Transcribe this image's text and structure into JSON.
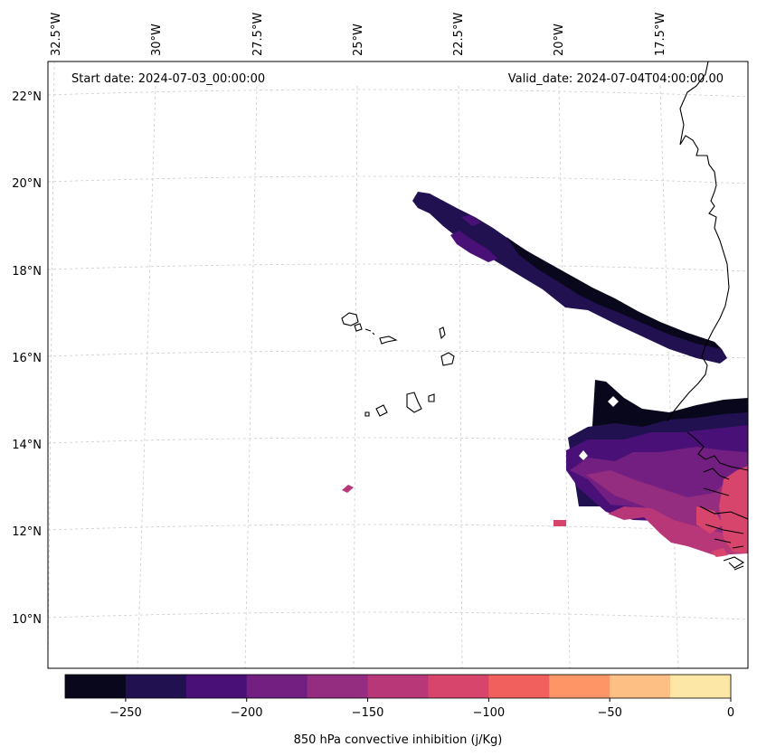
{
  "header": {
    "start_date": "Start date: 2024-07-03_00:00:00",
    "valid_date": "Valid_date: 2024-07-04T04:00:00.00"
  },
  "map": {
    "longitude_labels": [
      "32.5°W",
      "30°W",
      "27.5°W",
      "25°W",
      "22.5°W",
      "20°W",
      "17.5°W"
    ],
    "latitude_labels": [
      "22°N",
      "20°N",
      "18°N",
      "16°N",
      "14°N",
      "12°N",
      "10°N"
    ]
  },
  "colorbar": {
    "label": "850 hPa convective inhibition (j/Kg)",
    "ticks": [
      "−250",
      "−200",
      "−150",
      "−100",
      "−50",
      "0"
    ],
    "levels": [
      -275,
      -250,
      -225,
      -200,
      -175,
      -150,
      -125,
      -100,
      -75,
      -50,
      -25,
      0
    ],
    "colors": [
      "#09071b",
      "#221150",
      "#491078",
      "#721f81",
      "#942c80",
      "#b73779",
      "#d8456c",
      "#f1605d",
      "#fd9567",
      "#febf84",
      "#fde7a7"
    ]
  },
  "colors": {
    "coastline": "#000000",
    "gridline": "#cccccc"
  }
}
